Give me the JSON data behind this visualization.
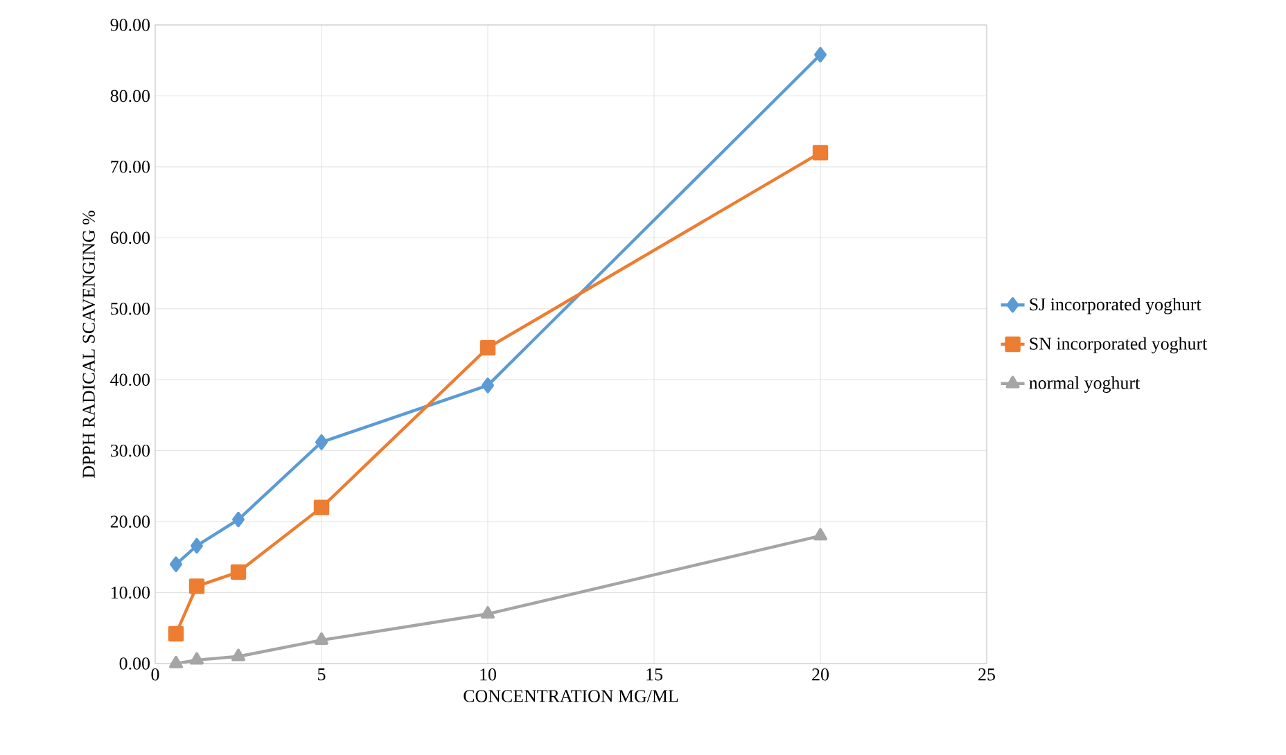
{
  "chart_data": {
    "type": "line",
    "xlabel": "CONCENTRATION MG/ML",
    "ylabel": "DPPH RADICAL SCAVENGING %",
    "x": [
      0.625,
      1.25,
      2.5,
      5,
      10,
      20
    ],
    "series": [
      {
        "name": "SJ incorporated yoghurt",
        "color": "#5b9bd5",
        "marker": "diamond",
        "values": [
          14.0,
          16.6,
          20.3,
          31.2,
          39.2,
          85.8
        ]
      },
      {
        "name": "SN incorporated yoghurt",
        "color": "#ed7d31",
        "marker": "square",
        "values": [
          4.2,
          10.9,
          12.9,
          22.0,
          44.5,
          72.0
        ]
      },
      {
        "name": "normal yoghurt",
        "color": "#a5a5a5",
        "marker": "triangle",
        "values": [
          0.0,
          0.5,
          1.0,
          3.3,
          7.0,
          18.0
        ]
      }
    ],
    "xlim": [
      0,
      25
    ],
    "xticks": [
      0,
      5,
      10,
      15,
      20,
      25
    ],
    "ylim": [
      0,
      90
    ],
    "yticks": [
      {
        "value": 0,
        "label": "0.00"
      },
      {
        "value": 10,
        "label": "10.00"
      },
      {
        "value": 20,
        "label": "20.00"
      },
      {
        "value": 30,
        "label": "30.00"
      },
      {
        "value": 40,
        "label": "40.00"
      },
      {
        "value": 50,
        "label": "50.00"
      },
      {
        "value": 60,
        "label": "60.00"
      },
      {
        "value": 70,
        "label": "70.00"
      },
      {
        "value": 80,
        "label": "80.00"
      },
      {
        "value": 90,
        "label": "90.00"
      }
    ],
    "grid": true,
    "legend": "right",
    "line_style": "solid"
  }
}
